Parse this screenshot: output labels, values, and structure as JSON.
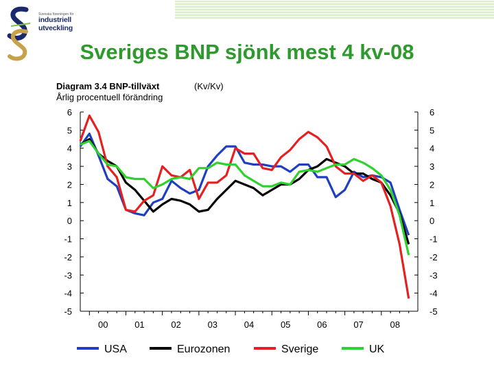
{
  "logo": {
    "small_text": "Svenska föreningen för",
    "name": "industriell utveckling"
  },
  "slide_title": "Sveriges BNP sjönk mest 4 kv-08",
  "chart_data": {
    "type": "line",
    "title": "Diagram 3.4 BNP-tillväxt",
    "subtitle": "Årlig procentuell förändring",
    "annotation": "(Kv/Kv)",
    "xlabel": "",
    "ylabel": "",
    "x_ticks": [
      "00",
      "01",
      "02",
      "03",
      "04",
      "05",
      "06",
      "07",
      "08"
    ],
    "xlim": [
      1999.75,
      2009.0
    ],
    "ylim": [
      -5,
      6
    ],
    "y_ticks": [
      "6",
      "5",
      "4",
      "3",
      "2",
      "1",
      "0",
      "-1",
      "-2",
      "-3",
      "-4",
      "-5"
    ],
    "y_ticks_right": [
      "6",
      "5",
      "4",
      "3",
      "2",
      "1",
      "0",
      "-1",
      "-2",
      "-3",
      "-4",
      "-5"
    ],
    "grid": false,
    "legend_position": "bottom",
    "x": [
      1999.75,
      2000.0,
      2000.25,
      2000.5,
      2000.75,
      2001.0,
      2001.25,
      2001.5,
      2001.75,
      2002.0,
      2002.25,
      2002.5,
      2002.75,
      2003.0,
      2003.25,
      2003.5,
      2003.75,
      2004.0,
      2004.25,
      2004.5,
      2004.75,
      2005.0,
      2005.25,
      2005.5,
      2005.75,
      2006.0,
      2006.25,
      2006.5,
      2006.75,
      2007.0,
      2007.25,
      2007.5,
      2007.75,
      2008.0,
      2008.25,
      2008.5,
      2008.75
    ],
    "series": [
      {
        "name": "USA",
        "color": "#1f3fbf",
        "values": [
          4.1,
          4.8,
          3.6,
          2.3,
          1.9,
          0.6,
          0.4,
          0.3,
          1.0,
          1.2,
          2.2,
          1.8,
          1.5,
          1.7,
          3.0,
          3.6,
          4.1,
          4.1,
          3.2,
          3.1,
          3.1,
          3.0,
          3.0,
          2.7,
          3.1,
          3.1,
          2.4,
          2.4,
          1.3,
          1.7,
          2.7,
          2.4,
          2.5,
          2.4,
          2.1,
          0.6,
          -0.8
        ]
      },
      {
        "name": "Eurozonen",
        "color": "#000000",
        "values": [
          4.2,
          4.5,
          3.7,
          3.3,
          3.0,
          2.1,
          1.7,
          1.1,
          0.5,
          0.9,
          1.2,
          1.1,
          0.9,
          0.5,
          0.6,
          1.2,
          1.7,
          2.2,
          2.0,
          1.8,
          1.4,
          1.7,
          2.0,
          2.0,
          2.3,
          2.8,
          3.0,
          3.4,
          3.2,
          3.0,
          2.6,
          2.6,
          2.3,
          2.1,
          1.4,
          0.4,
          -1.3
        ]
      },
      {
        "name": "Sverige",
        "color": "#e52020",
        "values": [
          4.4,
          5.8,
          4.9,
          3.0,
          2.4,
          0.6,
          0.5,
          1.1,
          1.4,
          3.0,
          2.5,
          2.4,
          2.8,
          1.2,
          2.1,
          2.1,
          2.5,
          4.0,
          3.7,
          3.7,
          2.9,
          2.8,
          3.5,
          3.9,
          4.5,
          4.9,
          4.6,
          4.1,
          3.0,
          2.6,
          2.6,
          2.2,
          2.5,
          2.1,
          0.8,
          -1.3,
          -4.3
        ]
      },
      {
        "name": "UK",
        "color": "#2fd12f",
        "values": [
          4.2,
          4.4,
          3.7,
          3.1,
          3.0,
          2.4,
          2.3,
          2.3,
          1.8,
          2.0,
          2.3,
          2.4,
          2.3,
          2.9,
          2.9,
          3.2,
          3.1,
          3.1,
          2.5,
          2.2,
          1.9,
          1.9,
          2.1,
          2.0,
          2.7,
          2.8,
          2.7,
          2.9,
          3.1,
          3.1,
          3.4,
          3.2,
          2.9,
          2.5,
          1.7,
          0.3,
          -1.9
        ]
      }
    ]
  },
  "colors": {
    "title_green": "#2e9a2e",
    "stripe_green": "#7cc24a"
  }
}
